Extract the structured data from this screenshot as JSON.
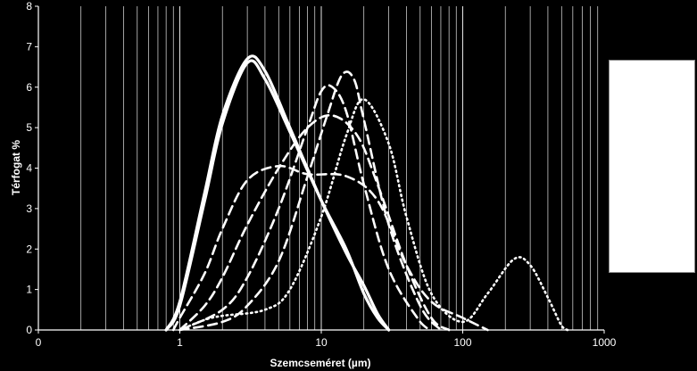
{
  "chart_data": {
    "type": "line",
    "title": "",
    "xlabel": "Szemcseméret (µm)",
    "ylabel": "Térfogat %",
    "xscale": "log",
    "xlim": [
      0.1,
      1000
    ],
    "ylim": [
      0,
      8
    ],
    "x_tick_labels": [
      "0",
      "1",
      "10",
      "100",
      "1000"
    ],
    "y_tick_labels": [
      "0",
      "1",
      "2",
      "3",
      "4",
      "5",
      "6",
      "7",
      "8"
    ],
    "grid": "vertical minor log gridlines",
    "legend": "right, blank white box",
    "colors": {
      "background": "#000000",
      "lines": "#ffffff",
      "legend_box": "#ffffff"
    },
    "series": [
      {
        "style": "solid",
        "points": [
          [
            0.8,
            0
          ],
          [
            1,
            0.6
          ],
          [
            1.5,
            3.2
          ],
          [
            2,
            5.1
          ],
          [
            3,
            6.6
          ],
          [
            4,
            6.2
          ],
          [
            6,
            4.9
          ],
          [
            10,
            3.2
          ],
          [
            15,
            2.0
          ],
          [
            20,
            0.9
          ],
          [
            25,
            0.3
          ],
          [
            30,
            0
          ]
        ]
      },
      {
        "style": "solid",
        "points": [
          [
            0.8,
            0
          ],
          [
            1,
            0.7
          ],
          [
            1.5,
            3.4
          ],
          [
            2,
            5.3
          ],
          [
            3,
            6.7
          ],
          [
            4,
            6.4
          ],
          [
            6,
            5.0
          ],
          [
            10,
            3.2
          ],
          [
            15,
            1.9
          ],
          [
            20,
            1.1
          ],
          [
            25,
            0.4
          ],
          [
            30,
            0
          ]
        ]
      },
      {
        "style": "dashed",
        "points": [
          [
            0.9,
            0
          ],
          [
            1,
            0.3
          ],
          [
            1.5,
            1.4
          ],
          [
            2,
            2.5
          ],
          [
            3,
            3.7
          ],
          [
            5,
            4.05
          ],
          [
            8,
            3.85
          ],
          [
            15,
            3.8
          ],
          [
            25,
            3.2
          ],
          [
            40,
            1.6
          ],
          [
            60,
            0.7
          ],
          [
            100,
            0.3
          ],
          [
            150,
            0
          ]
        ]
      },
      {
        "style": "dashed",
        "points": [
          [
            1,
            0
          ],
          [
            1.5,
            0.6
          ],
          [
            2,
            1.3
          ],
          [
            3,
            2.6
          ],
          [
            5,
            4.0
          ],
          [
            8,
            5.0
          ],
          [
            12,
            5.3
          ],
          [
            18,
            4.8
          ],
          [
            25,
            3.6
          ],
          [
            40,
            1.6
          ],
          [
            60,
            0.3
          ],
          [
            80,
            0
          ]
        ]
      },
      {
        "style": "dashed",
        "points": [
          [
            1,
            0
          ],
          [
            2,
            0.5
          ],
          [
            3,
            1.3
          ],
          [
            5,
            3.0
          ],
          [
            8,
            5.0
          ],
          [
            10,
            5.9
          ],
          [
            12,
            6.0
          ],
          [
            15,
            5.4
          ],
          [
            20,
            3.6
          ],
          [
            30,
            1.5
          ],
          [
            50,
            0.2
          ],
          [
            60,
            0
          ]
        ]
      },
      {
        "style": "dashed",
        "points": [
          [
            1,
            0
          ],
          [
            2,
            0.2
          ],
          [
            3,
            0.6
          ],
          [
            5,
            1.7
          ],
          [
            8,
            3.8
          ],
          [
            11,
            5.3
          ],
          [
            14,
            6.3
          ],
          [
            17,
            6.2
          ],
          [
            20,
            5.2
          ],
          [
            30,
            2.6
          ],
          [
            50,
            0.6
          ],
          [
            70,
            0
          ]
        ]
      },
      {
        "style": "dotted",
        "points": [
          [
            1,
            0
          ],
          [
            1.5,
            0.25
          ],
          [
            2,
            0.35
          ],
          [
            4,
            0.5
          ],
          [
            6,
            1.0
          ],
          [
            10,
            2.8
          ],
          [
            15,
            4.8
          ],
          [
            20,
            5.7
          ],
          [
            30,
            4.6
          ],
          [
            40,
            2.8
          ],
          [
            60,
            0.9
          ],
          [
            100,
            0.2
          ],
          [
            150,
            0.9
          ],
          [
            230,
            1.75
          ],
          [
            300,
            1.6
          ],
          [
            400,
            0.8
          ],
          [
            500,
            0.1
          ],
          [
            550,
            0
          ]
        ]
      }
    ]
  }
}
